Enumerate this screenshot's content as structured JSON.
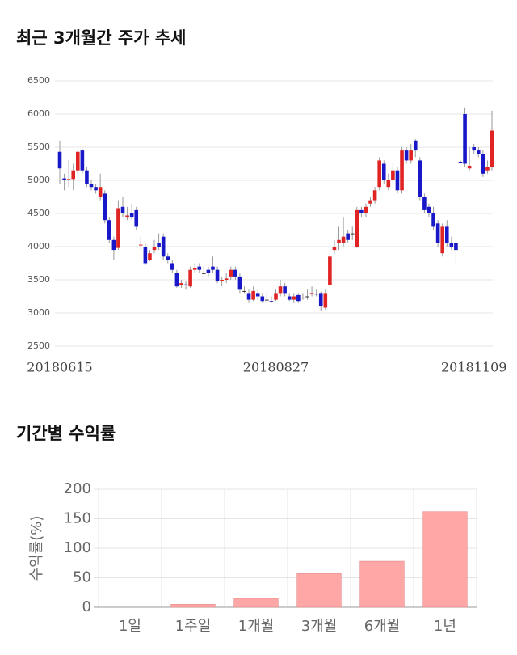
{
  "chart_data": [
    {
      "type": "candlestick",
      "title": "최근 3개월간 주가 추세",
      "categories": [
        "20180615",
        null,
        null,
        null,
        null,
        null,
        null,
        null,
        null,
        null,
        null,
        null,
        null,
        null,
        null,
        null,
        null,
        null,
        null,
        null,
        null,
        null,
        null,
        null,
        null,
        null,
        null,
        null,
        null,
        null,
        null,
        null,
        null,
        null,
        null,
        null,
        null,
        null,
        null,
        null,
        null,
        null,
        null,
        null,
        null,
        null,
        null,
        null,
        "20180827",
        null,
        null,
        null,
        null,
        null,
        null,
        null,
        null,
        null,
        null,
        null,
        null,
        null,
        null,
        null,
        null,
        null,
        null,
        null,
        null,
        null,
        null,
        null,
        null,
        null,
        null,
        null,
        null,
        null,
        null,
        null,
        null,
        null,
        null,
        null,
        null,
        null,
        null,
        null,
        null,
        null,
        null,
        null,
        "20181109",
        null,
        null,
        null,
        null
      ],
      "open": [
        5430,
        5030,
        5000,
        5020,
        5150,
        5450,
        5150,
        4950,
        4900,
        4750,
        4800,
        4400,
        4100,
        3980,
        4600,
        4450,
        4500,
        4550,
        4020,
        4000,
        3800,
        3950,
        4050,
        4150,
        3850,
        3750,
        3600,
        3420,
        3430,
        3400,
        3650,
        3700,
        3600,
        3650,
        3700,
        3650,
        3480,
        3500,
        3550,
        3650,
        3550,
        3330,
        3300,
        3200,
        3300,
        3250,
        3200,
        3180,
        3200,
        3300,
        3400,
        3250,
        3200,
        3270,
        3220,
        3250,
        3280,
        3290,
        3300,
        3080,
        3420,
        3950,
        4050,
        4050,
        4200,
        4200,
        4000,
        4550,
        4500,
        4650,
        4700,
        4900,
        5250,
        4900,
        5000,
        5150,
        4850,
        5450,
        5300,
        5600,
        5300,
        4750,
        4600,
        4500,
        4350,
        3900,
        4300,
        4050,
        4050,
        5280,
        6000,
        5180,
        5500,
        5450,
        5400,
        5150,
        5200
      ],
      "close": [
        5180,
        5010,
        5020,
        5150,
        5430,
        5150,
        4950,
        4900,
        4850,
        4900,
        4400,
        4100,
        3950,
        4580,
        4500,
        4470,
        4450,
        4300,
        4030,
        3750,
        3900,
        4000,
        4000,
        3850,
        3800,
        3650,
        3400,
        3450,
        3420,
        3650,
        3680,
        3650,
        3600,
        3600,
        3650,
        3480,
        3500,
        3520,
        3650,
        3550,
        3350,
        3330,
        3200,
        3330,
        3250,
        3180,
        3200,
        3170,
        3300,
        3400,
        3300,
        3200,
        3250,
        3180,
        3230,
        3250,
        3300,
        3280,
        3100,
        3300,
        3850,
        4000,
        4100,
        4150,
        4100,
        4200,
        4550,
        4500,
        4600,
        4700,
        4850,
        5300,
        5000,
        5000,
        5150,
        4850,
        5450,
        5300,
        5450,
        5450,
        4750,
        4550,
        4500,
        4300,
        4050,
        4300,
        4050,
        4000,
        3950,
        5270,
        5250,
        5220,
        5450,
        5400,
        5100,
        5200,
        5750
      ],
      "high": [
        5600,
        5100,
        5300,
        5250,
        5450,
        5480,
        5200,
        5000,
        4950,
        5100,
        4850,
        4450,
        4150,
        4700,
        4750,
        4600,
        4650,
        4600,
        4150,
        4050,
        3950,
        4100,
        4200,
        4200,
        3900,
        3800,
        3650,
        3500,
        3480,
        3700,
        3750,
        3750,
        3700,
        3700,
        3850,
        3700,
        3550,
        3600,
        3700,
        3700,
        3600,
        3400,
        3350,
        3400,
        3350,
        3300,
        3300,
        3250,
        3350,
        3500,
        3450,
        3300,
        3300,
        3300,
        3300,
        3350,
        3400,
        3350,
        3320,
        3350,
        3900,
        4100,
        4300,
        4450,
        4250,
        4300,
        4600,
        4600,
        4650,
        4750,
        4900,
        5350,
        5300,
        5100,
        5250,
        5200,
        5500,
        5500,
        5550,
        5620,
        5350,
        4800,
        4650,
        4600,
        4400,
        4350,
        4400,
        4150,
        4100,
        5300,
        6100,
        5500,
        5550,
        5500,
        5450,
        5300,
        6050
      ],
      "low": [
        4950,
        4850,
        4900,
        4850,
        5100,
        5100,
        4900,
        4850,
        4800,
        4700,
        4350,
        4050,
        3800,
        3950,
        4450,
        4400,
        4400,
        4250,
        3950,
        3720,
        3780,
        3900,
        3950,
        3800,
        3750,
        3600,
        3380,
        3380,
        3350,
        3380,
        3600,
        3600,
        3550,
        3550,
        3600,
        3450,
        3400,
        3450,
        3500,
        3500,
        3300,
        3300,
        3150,
        3180,
        3200,
        3150,
        3150,
        3150,
        3180,
        3250,
        3250,
        3180,
        3150,
        3150,
        3200,
        3200,
        3250,
        3250,
        3030,
        3050,
        3380,
        3900,
        3950,
        4000,
        4050,
        4100,
        3980,
        4450,
        4450,
        4600,
        4650,
        4850,
        4950,
        4850,
        4950,
        4800,
        4800,
        5250,
        5250,
        5350,
        4700,
        4500,
        4450,
        4250,
        4000,
        3850,
        4000,
        3950,
        3750,
        5250,
        5200,
        5150,
        5400,
        5350,
        5050,
        5100,
        5150
      ],
      "up_color": "#e02424",
      "down_color": "#1818c8",
      "ylim": [
        2500,
        6500
      ],
      "yticks": [
        2500,
        3000,
        3500,
        4000,
        4500,
        5000,
        5500,
        6000,
        6500
      ],
      "grid": true
    },
    {
      "type": "bar",
      "title": "기간별 수익률",
      "ylabel": "수익률(%)",
      "categories": [
        "1일",
        "1주일",
        "1개월",
        "3개월",
        "6개월",
        "1년"
      ],
      "values": [
        0,
        5,
        15,
        57,
        78,
        162
      ],
      "color": "#ffa6a6",
      "ylim": [
        0,
        200
      ],
      "yticks": [
        0,
        50,
        100,
        150,
        200
      ],
      "grid": true
    }
  ]
}
